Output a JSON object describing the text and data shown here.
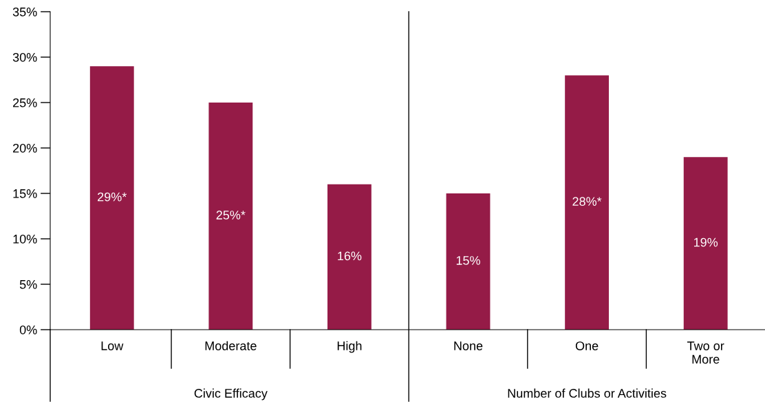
{
  "chart_data": {
    "type": "bar",
    "categories": [
      "Low",
      "Moderate",
      "High",
      "None",
      "One",
      "Two or\nMore"
    ],
    "values": [
      29,
      25,
      16,
      15,
      28,
      19
    ],
    "value_labels": [
      "29%*",
      "25%*",
      "16%",
      "15%",
      "28%*",
      "19%"
    ],
    "color": "#951b47",
    "ylim": [
      0,
      35
    ],
    "yticks": [
      {
        "value": 0,
        "label": "0%"
      },
      {
        "value": 5,
        "label": "5%"
      },
      {
        "value": 10,
        "label": "10%"
      },
      {
        "value": 15,
        "label": "15%"
      },
      {
        "value": 20,
        "label": "20%"
      },
      {
        "value": 25,
        "label": "25%"
      },
      {
        "value": 30,
        "label": "30%"
      },
      {
        "value": 35,
        "label": "35%"
      }
    ],
    "annotations": [
      "Civic Efficacy",
      "Number of Clubs or Activities"
    ],
    "grid": false
  }
}
